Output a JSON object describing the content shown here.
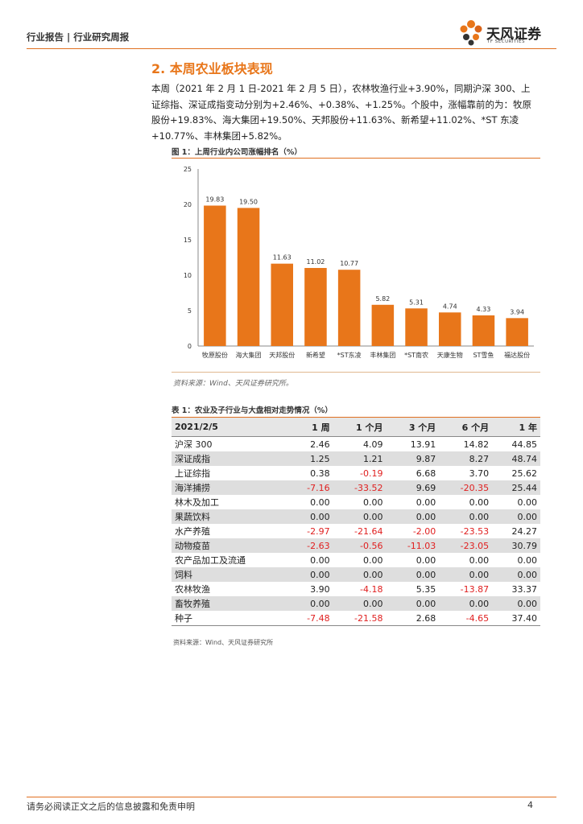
{
  "header": {
    "text": "行业报告 | 行业研究周报"
  },
  "logo": {
    "name": "天风证券",
    "sub": "TF SECURITIES"
  },
  "section": {
    "title": "2. 本周农业板块表现",
    "paragraph": "本周（2021 年 2 月 1 日-2021 年 2 月 5 日），农林牧渔行业+3.90%，同期沪深 300、上证综指、深证成指变动分别为+2.46%、+0.38%、+1.25%。个股中，涨幅靠前的为：牧原股份+19.83%、海大集团+19.50%、天邦股份+11.63%、新希望+11.02%、*ST 东凌+10.77%、丰林集团+5.82%。"
  },
  "figure": {
    "title": "图 1：上周行业内公司涨幅排名（%）",
    "source": "资料来源：Wind、天风证券研究所。"
  },
  "chart_data": {
    "type": "bar",
    "title": "图 1：上周行业内公司涨幅排名（%）",
    "categories": [
      "牧原股份",
      "海大集团",
      "天邦股份",
      "新希望",
      "*ST东凌",
      "丰林集团",
      "*ST南农",
      "天康生物",
      "ST雪鱼",
      "福达股份"
    ],
    "values": [
      19.83,
      19.5,
      11.63,
      11.02,
      10.77,
      5.82,
      5.31,
      4.74,
      4.33,
      3.94
    ],
    "value_labels": [
      "19.83",
      "19.50",
      "11.63",
      "11.02",
      "10.77",
      "5.82",
      "5.31",
      "4.74",
      "4.33",
      "3.94"
    ],
    "ylim": [
      0,
      25
    ],
    "yticks": [
      "0",
      "5",
      "10",
      "15",
      "20",
      "25"
    ],
    "ytick_values": [
      0,
      5,
      10,
      15,
      20,
      25
    ],
    "bar_color": "#e8761a",
    "xlabel": "",
    "ylabel": ""
  },
  "table": {
    "title": "表 1：农业及子行业与大盘相对走势情况（%）",
    "headers": [
      "2021/2/5",
      "1 周",
      "1 个月",
      "3 个月",
      "6 个月",
      "1 年"
    ],
    "rows": [
      [
        "沪深 300",
        "2.46",
        "4.09",
        "13.91",
        "14.82",
        "44.85"
      ],
      [
        "深证成指",
        "1.25",
        "1.21",
        "9.87",
        "8.27",
        "48.74"
      ],
      [
        "上证综指",
        "0.38",
        "-0.19",
        "6.68",
        "3.70",
        "25.62"
      ],
      [
        "海洋捕捞",
        "-7.16",
        "-33.52",
        "9.69",
        "-20.35",
        "25.44"
      ],
      [
        "林木及加工",
        "0.00",
        "0.00",
        "0.00",
        "0.00",
        "0.00"
      ],
      [
        "果蔬饮料",
        "0.00",
        "0.00",
        "0.00",
        "0.00",
        "0.00"
      ],
      [
        "水产养殖",
        "-2.97",
        "-21.64",
        "-2.00",
        "-23.53",
        "24.27"
      ],
      [
        "动物疫苗",
        "-2.63",
        "-0.56",
        "-11.03",
        "-23.05",
        "30.79"
      ],
      [
        "农产品加工及流通",
        "0.00",
        "0.00",
        "0.00",
        "0.00",
        "0.00"
      ],
      [
        "饲料",
        "0.00",
        "0.00",
        "0.00",
        "0.00",
        "0.00"
      ],
      [
        "农林牧渔",
        "3.90",
        "-4.18",
        "5.35",
        "-13.87",
        "33.37"
      ],
      [
        "畜牧养殖",
        "0.00",
        "0.00",
        "0.00",
        "0.00",
        "0.00"
      ],
      [
        "种子",
        "-7.48",
        "-21.58",
        "2.68",
        "-4.65",
        "37.40"
      ]
    ],
    "source": "资料来源：Wind、天风证券研究所",
    "negative_color": "#e02020"
  },
  "footer": {
    "disclaimer": "请务必阅读正文之后的信息披露和免责申明",
    "page": "4"
  }
}
